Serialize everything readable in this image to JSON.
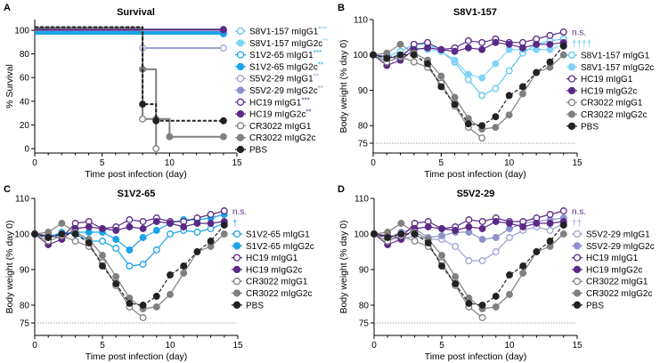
{
  "colors": {
    "S8V1-157 mIgG1": "#5cc6f2",
    "S8V1-157 mIgG2c": "#7fd4f7",
    "S1V2-65 mIgG1": "#1aa3e8",
    "S1V2-65 mIgG2c": "#1aa3e8",
    "S5V2-29 mIgG1": "#9da1d6",
    "S5V2-29 mIgG2c": "#8e92cc",
    "HC19 mIgG1": "#5b2a86",
    "HC19 mIgG2c": "#5b2a86",
    "CR3022 mIgG1": "#808080",
    "CR3022 mIgG2c": "#808080",
    "PBS": "#222222"
  },
  "chart_data": [
    {
      "panel": "A",
      "type": "line",
      "title": "Survival",
      "xlabel": "Time post infection (day)",
      "ylabel": "% Survival",
      "xlim": [
        0,
        15
      ],
      "ylim": [
        -5,
        110
      ],
      "xticks": [
        "0",
        "5",
        "10",
        "15"
      ],
      "yticks": [
        "0",
        "20",
        "40",
        "60",
        "80",
        "100"
      ],
      "step": true,
      "legend": "right",
      "series": [
        {
          "name": "S8V1-157 mIgG1",
          "stars": "***",
          "open": true,
          "x": [
            0,
            14
          ],
          "y": [
            100,
            100
          ]
        },
        {
          "name": "S8V1-157 mIgG2c",
          "stars": "**",
          "open": false,
          "x": [
            0,
            14
          ],
          "y": [
            100,
            100
          ]
        },
        {
          "name": "S1V2-65 mIgG1",
          "stars": "***",
          "open": true,
          "x": [
            0,
            14
          ],
          "y": [
            100,
            100
          ]
        },
        {
          "name": "S1V2-65 mIgG2c",
          "stars": "**",
          "open": false,
          "x": [
            0,
            14
          ],
          "y": [
            100,
            100
          ]
        },
        {
          "name": "S5V2-29 mIgG1",
          "stars": "**",
          "open": true,
          "x": [
            0,
            8,
            14
          ],
          "y": [
            100,
            85,
            85
          ]
        },
        {
          "name": "S5V2-29 mIgG2c",
          "stars": "**",
          "open": false,
          "x": [
            0,
            14
          ],
          "y": [
            100,
            100
          ]
        },
        {
          "name": "HC19 mIgG1",
          "stars": "***",
          "open": true,
          "x": [
            0,
            14
          ],
          "y": [
            100,
            100
          ]
        },
        {
          "name": "HC19 mIgG2c",
          "stars": "**",
          "open": false,
          "x": [
            0,
            14
          ],
          "y": [
            100,
            100
          ]
        },
        {
          "name": "CR3022 mIgG1",
          "stars": "",
          "open": true,
          "x": [
            0,
            8,
            9
          ],
          "y": [
            100,
            25,
            0
          ]
        },
        {
          "name": "CR3022 mIgG2c",
          "stars": "",
          "open": false,
          "x": [
            0,
            8,
            9,
            10,
            14
          ],
          "y": [
            100,
            67,
            25,
            10,
            10
          ]
        },
        {
          "name": "PBS",
          "stars": "",
          "open": false,
          "dashed": true,
          "x": [
            0,
            8,
            9,
            14
          ],
          "y": [
            100,
            37.5,
            23.5,
            23.5
          ]
        }
      ]
    },
    {
      "panel": "B",
      "type": "line",
      "title": "S8V1-157",
      "xlabel": "Time post infection (day)",
      "ylabel": "Body weight (% day 0)",
      "xlim": [
        0,
        15
      ],
      "ylim": [
        72.3,
        110
      ],
      "xticks": [
        "0",
        "5",
        "10",
        "15"
      ],
      "yticks": [
        "75",
        "80",
        "90",
        "100",
        "110"
      ],
      "reference_line": 75,
      "annotations": [
        "n.s.",
        "††††"
      ],
      "legend": "right",
      "series": [
        {
          "name": "S8V1-157 mIgG1",
          "open": true,
          "y": [
            100,
            99.5,
            101,
            103,
            103,
            101,
            98,
            93,
            88.5,
            90.5,
            95.5,
            100.5,
            103,
            104,
            104.5
          ]
        },
        {
          "name": "S8V1-157 mIgG2c",
          "open": false,
          "y": [
            100,
            99,
            100,
            102,
            101.5,
            101,
            98.5,
            94.5,
            93.5,
            97.5,
            101.5,
            101.5,
            101.5,
            101.5,
            103
          ]
        },
        {
          "name": "HC19 mIgG1",
          "open": true,
          "y": [
            100,
            99.5,
            99,
            103,
            103.5,
            101.5,
            102,
            104,
            103.5,
            104.5,
            103.5,
            103.5,
            104.5,
            105.5,
            106.5
          ]
        },
        {
          "name": "HC19 mIgG2c",
          "open": false,
          "y": [
            100,
            97,
            98.5,
            101.5,
            102,
            101.5,
            101,
            102,
            101.5,
            103.5,
            103,
            102,
            103,
            103,
            103.5
          ]
        },
        {
          "name": "CR3022 mIgG1",
          "open": true,
          "y": [
            100,
            98,
            99.5,
            98,
            96.5,
            92,
            85.5,
            79.5,
            76.5
          ]
        },
        {
          "name": "CR3022 mIgG2c",
          "open": false,
          "y": [
            100,
            100.5,
            103,
            100.5,
            98.5,
            94,
            88,
            82,
            79,
            79.5,
            83,
            89,
            95,
            96.5,
            100
          ]
        },
        {
          "name": "PBS",
          "open": false,
          "dashed": true,
          "y": [
            100,
            99,
            100,
            100,
            97.5,
            91,
            86,
            80.5,
            80,
            82.5,
            88.5,
            91,
            95,
            98,
            102.5
          ]
        }
      ]
    },
    {
      "panel": "C",
      "type": "line",
      "title": "S1V2-65",
      "xlabel": "Time post infection (day)",
      "ylabel": "Body weight (% day 0)",
      "xlim": [
        0,
        15
      ],
      "ylim": [
        72.3,
        110
      ],
      "xticks": [
        "0",
        "5",
        "10",
        "15"
      ],
      "yticks": [
        "75",
        "80",
        "90",
        "100",
        "110"
      ],
      "reference_line": 75,
      "annotations": [
        "n.s.",
        "†"
      ],
      "legend": "right",
      "series": [
        {
          "name": "S1V2-65 mIgG1",
          "open": true,
          "y": [
            100,
            99,
            100.5,
            100,
            98,
            98,
            96,
            91,
            91.5,
            95.5,
            100,
            101,
            100.5,
            101.5,
            103
          ]
        },
        {
          "name": "S1V2-65 mIgG2c",
          "open": false,
          "y": [
            100,
            99.5,
            100,
            100.5,
            100.5,
            100.5,
            98.5,
            95.5,
            99,
            101,
            103,
            104,
            104,
            104.5,
            105.5
          ]
        },
        {
          "name": "HC19 mIgG1",
          "open": true,
          "y": [
            100,
            99.5,
            99,
            103,
            103.5,
            101.5,
            102,
            104,
            103.5,
            104.5,
            103.5,
            103.5,
            104.5,
            105.5,
            106.5
          ]
        },
        {
          "name": "HC19 mIgG2c",
          "open": false,
          "y": [
            100,
            97,
            98.5,
            101.5,
            102,
            101.5,
            101,
            102,
            101.5,
            103.5,
            103,
            102,
            103,
            103,
            103.5
          ]
        },
        {
          "name": "CR3022 mIgG1",
          "open": true,
          "y": [
            100,
            98,
            99.5,
            98,
            96.5,
            92,
            85.5,
            79.5,
            76.5
          ]
        },
        {
          "name": "CR3022 mIgG2c",
          "open": false,
          "y": [
            100,
            100.5,
            103,
            100.5,
            98.5,
            94,
            88,
            82,
            79,
            79.5,
            83,
            89,
            95,
            96.5,
            100
          ]
        },
        {
          "name": "PBS",
          "open": false,
          "dashed": true,
          "y": [
            100,
            99,
            100,
            100,
            97.5,
            91,
            86,
            80.5,
            80,
            82.5,
            88.5,
            91,
            95,
            98,
            102.5
          ]
        }
      ]
    },
    {
      "panel": "D",
      "type": "line",
      "title": "S5V2-29",
      "xlabel": "Time post infection (day)",
      "ylabel": "Body weight (% day 0)",
      "xlim": [
        0,
        15
      ],
      "ylim": [
        72.3,
        110
      ],
      "xticks": [
        "0",
        "5",
        "10",
        "15"
      ],
      "yticks": [
        "75",
        "80",
        "90",
        "100",
        "110"
      ],
      "reference_line": 75,
      "annotations": [
        "n.s.",
        "††"
      ],
      "legend": "right",
      "series": [
        {
          "name": "S5V2-29 mIgG1",
          "open": true,
          "y": [
            100,
            99,
            98.5,
            99.5,
            98.5,
            98.5,
            96.5,
            92.5,
            92.5,
            95,
            99,
            101,
            102,
            101,
            103
          ]
        },
        {
          "name": "S5V2-29 mIgG2c",
          "open": false,
          "y": [
            100,
            99,
            100.5,
            101.5,
            99,
            99.5,
            100.5,
            100.5,
            98.5,
            99,
            101.5,
            103,
            103.5,
            104,
            104.5
          ]
        },
        {
          "name": "HC19 mIgG1",
          "open": true,
          "y": [
            100,
            99.5,
            99,
            103,
            103.5,
            101.5,
            102,
            104,
            103.5,
            104.5,
            103.5,
            103.5,
            104.5,
            105.5,
            106.5
          ]
        },
        {
          "name": "HC19 mIgG2c",
          "open": false,
          "y": [
            100,
            97,
            98.5,
            101.5,
            102,
            101.5,
            101,
            102,
            101.5,
            103.5,
            103,
            102,
            103,
            103,
            103.5
          ]
        },
        {
          "name": "CR3022 mIgG1",
          "open": true,
          "y": [
            100,
            98,
            99.5,
            98,
            96.5,
            92,
            85.5,
            79.5,
            76.5
          ]
        },
        {
          "name": "CR3022 mIgG2c",
          "open": false,
          "y": [
            100,
            100.5,
            103,
            100.5,
            98.5,
            94,
            88,
            82,
            79,
            79.5,
            83,
            89,
            95,
            96.5,
            100
          ]
        },
        {
          "name": "PBS",
          "open": false,
          "dashed": true,
          "y": [
            100,
            99,
            100,
            100,
            97.5,
            91,
            86,
            80.5,
            80,
            82.5,
            88.5,
            91,
            95,
            98,
            102.5
          ]
        }
      ]
    }
  ]
}
